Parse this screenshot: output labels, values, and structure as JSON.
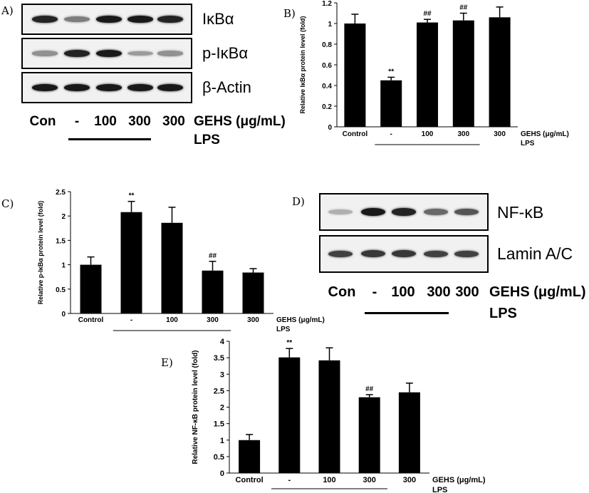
{
  "panel_letters": {
    "a": "A)",
    "b": "B)",
    "c": "C)",
    "d": "D)",
    "e": "E)"
  },
  "blot_a": {
    "rows": [
      {
        "label": "IκBα",
        "intensities": [
          0.9,
          0.45,
          0.95,
          0.95,
          0.9
        ]
      },
      {
        "label": "p-IκBα",
        "intensities": [
          0.35,
          0.9,
          0.95,
          0.3,
          0.35
        ]
      },
      {
        "label": "β-Actin",
        "intensities": [
          0.95,
          0.95,
          0.95,
          0.95,
          0.95
        ]
      }
    ],
    "lanes": [
      "Con",
      "-",
      "100",
      "300",
      "300"
    ],
    "treatment_label": "GEHS (μg/mL)",
    "lps_label": "LPS"
  },
  "blot_d": {
    "rows": [
      {
        "label": "NF-κB",
        "intensities": [
          0.2,
          0.95,
          0.9,
          0.55,
          0.65
        ]
      },
      {
        "label": "Lamin A/C",
        "intensities": [
          0.75,
          0.8,
          0.8,
          0.75,
          0.75
        ]
      }
    ],
    "lanes": [
      "Con",
      "-",
      "100",
      "300",
      "300"
    ],
    "treatment_label": "GEHS (μg/mL)",
    "lps_label": "LPS"
  },
  "chart_data": [
    {
      "type": "bar",
      "panel": "B",
      "categories": [
        "Control",
        "-",
        "100",
        "300",
        "300"
      ],
      "values": [
        1.0,
        0.45,
        1.01,
        1.03,
        1.06
      ],
      "errors": [
        0.09,
        0.03,
        0.03,
        0.07,
        0.1
      ],
      "significance": [
        "",
        "**",
        "##",
        "##",
        ""
      ],
      "ylabel": "Relative IκBα protein level (fold)",
      "yticks": [
        "0",
        "0.2",
        "0.4",
        "0.6",
        "0.8",
        "1",
        "1.2"
      ],
      "ylim": [
        0,
        1.2
      ],
      "treatment_label": "GEHS (μg/mL)",
      "lps_label": "LPS"
    },
    {
      "type": "bar",
      "panel": "C",
      "categories": [
        "Control",
        "-",
        "100",
        "300",
        "300"
      ],
      "values": [
        1.0,
        2.08,
        1.86,
        0.88,
        0.84
      ],
      "errors": [
        0.16,
        0.22,
        0.32,
        0.19,
        0.08
      ],
      "significance": [
        "",
        "**",
        "",
        "##",
        ""
      ],
      "ylabel": "Relative p-IκBα protein level (fold)",
      "yticks": [
        "0",
        "0.5",
        "1",
        "1.5",
        "2",
        "2.5"
      ],
      "ylim": [
        0,
        2.5
      ],
      "treatment_label": "GEHS (μg/mL)",
      "lps_label": "LPS"
    },
    {
      "type": "bar",
      "panel": "E",
      "categories": [
        "Control",
        "-",
        "100",
        "300",
        "300"
      ],
      "values": [
        1.0,
        3.51,
        3.42,
        2.3,
        2.45
      ],
      "errors": [
        0.17,
        0.27,
        0.38,
        0.08,
        0.28
      ],
      "significance": [
        "",
        "**",
        "",
        "##",
        ""
      ],
      "ylabel": "Relative NF-κB protein level (fold)",
      "yticks": [
        "0",
        "0.5",
        "1",
        "1.5",
        "2",
        "2.5",
        "3",
        "3.5",
        "4"
      ],
      "ylim": [
        0,
        4
      ],
      "treatment_label": "GEHS (μg/mL)",
      "lps_label": "LPS"
    }
  ]
}
